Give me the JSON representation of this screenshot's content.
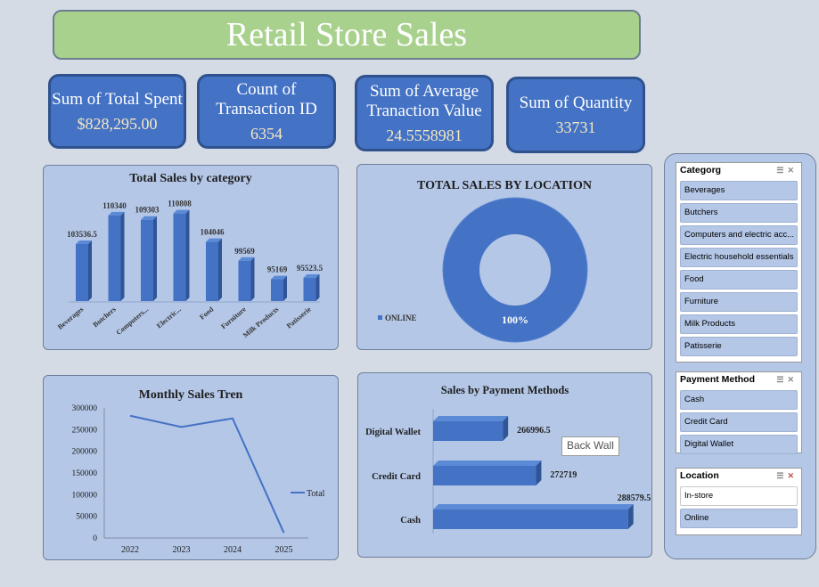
{
  "title": "Retail Store Sales",
  "kpis": [
    {
      "label": "Sum of Total Spent",
      "value": "$828,295.00"
    },
    {
      "label": "Count of Transaction ID",
      "value": "6354"
    },
    {
      "label": "Sum of Average Tranaction Value",
      "value": "24.5558981"
    },
    {
      "label": "Sum of Quantity",
      "value": "33731"
    }
  ],
  "charts": {
    "category": {
      "title": "Total Sales by category",
      "chart_data": {
        "type": "bar",
        "categories": [
          "Beverages",
          "Butchers",
          "Computers...",
          "Electric...",
          "Food",
          "Furniture",
          "Milk Products",
          "Patisserie"
        ],
        "values": [
          103536.5,
          110340,
          109303,
          110808,
          104046,
          99569,
          95169,
          95523.5
        ],
        "value_labels": [
          "103536.5",
          "110340",
          "109303",
          "110808",
          "104046",
          "99569",
          "95169",
          "95523.5"
        ],
        "ylim": [
          90000,
          112000
        ]
      }
    },
    "location": {
      "title": "TOTAL SALES BY LOCATION",
      "chart_data": {
        "type": "pie",
        "categories": [
          "ONLINE"
        ],
        "values": [
          100
        ],
        "data_label": "100%",
        "legend": "left"
      }
    },
    "monthly": {
      "title": "Monthly Sales Tren",
      "chart_data": {
        "type": "line",
        "x": [
          "2022",
          "2023",
          "2024",
          "2025"
        ],
        "series": [
          {
            "name": "Total",
            "values": [
              282000,
              256000,
              276000,
              12000
            ]
          }
        ],
        "ylim": [
          0,
          300000
        ],
        "yticks": [
          "300000",
          "250000",
          "200000",
          "150000",
          "100000",
          "50000",
          "0"
        ],
        "color": "#4472c4"
      }
    },
    "payment": {
      "title": "Sales by Payment Methods",
      "chart_data": {
        "type": "bar",
        "categories": [
          "Digital Wallet",
          "Credit Card",
          "Cash"
        ],
        "values": [
          266996.5,
          272719,
          288579.5
        ],
        "value_labels": [
          "266996.5",
          "272719",
          "288579.5"
        ],
        "xlim": [
          255000,
          290000
        ]
      }
    }
  },
  "slicers": {
    "category": {
      "title": "Categorg",
      "items": [
        "Beverages",
        "Butchers",
        "Computers and electric acc...",
        "Electric household essentials",
        "Food",
        "Furniture",
        "Milk Products",
        "Patisserie"
      ]
    },
    "payment": {
      "title": "Payment Method",
      "items": [
        "Cash",
        "Credit Card",
        "Digital Wallet"
      ]
    },
    "location": {
      "title": "Location",
      "items": [
        "In-store",
        "Online"
      ]
    }
  },
  "tooltip": "Back Wall",
  "colors": {
    "bar": "#4472c4",
    "bar_top": "#5b8ad6",
    "bar_side": "#2f5597"
  }
}
